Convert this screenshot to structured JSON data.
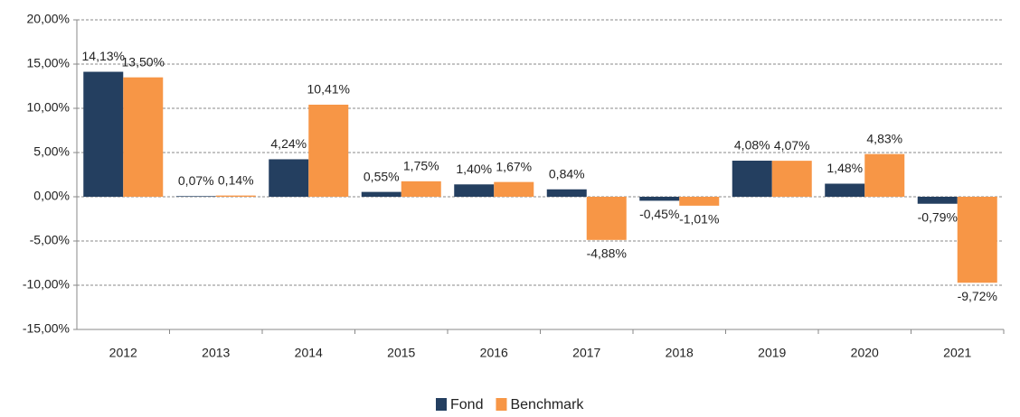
{
  "chart_data": {
    "type": "bar",
    "categories": [
      "2012",
      "2013",
      "2014",
      "2015",
      "2016",
      "2017",
      "2018",
      "2019",
      "2020",
      "2021"
    ],
    "series": [
      {
        "name": "Fond",
        "color": "#243f60",
        "values": [
          14.13,
          0.07,
          4.24,
          0.55,
          1.4,
          0.84,
          -0.45,
          4.08,
          1.48,
          -0.79
        ],
        "value_labels": [
          "14,13%",
          "0,07%",
          "4,24%",
          "0,55%",
          "1,40%",
          "0,84%",
          "-0,45%",
          "4,08%",
          "1,48%",
          "-0,79%"
        ]
      },
      {
        "name": "Benchmark",
        "color": "#f79646",
        "values": [
          13.5,
          0.14,
          10.41,
          1.75,
          1.67,
          -4.88,
          -1.01,
          4.07,
          4.83,
          -9.72
        ],
        "value_labels": [
          "13,50%",
          "0,14%",
          "10,41%",
          "1,75%",
          "1,67%",
          "-4,88%",
          "-1,01%",
          "4,07%",
          "4,83%",
          "-9,72%"
        ]
      }
    ],
    "ylim": [
      -15,
      20
    ],
    "yticks": [
      {
        "value": -15,
        "label": "-15,00%"
      },
      {
        "value": -10,
        "label": "-10,00%"
      },
      {
        "value": -5,
        "label": "-5,00%"
      },
      {
        "value": 0,
        "label": "0,00%"
      },
      {
        "value": 5,
        "label": "5,00%"
      },
      {
        "value": 10,
        "label": "10,00%"
      },
      {
        "value": 15,
        "label": "15,00%"
      },
      {
        "value": 20,
        "label": "20,00%"
      }
    ],
    "grid": true,
    "legend": "bottom"
  }
}
